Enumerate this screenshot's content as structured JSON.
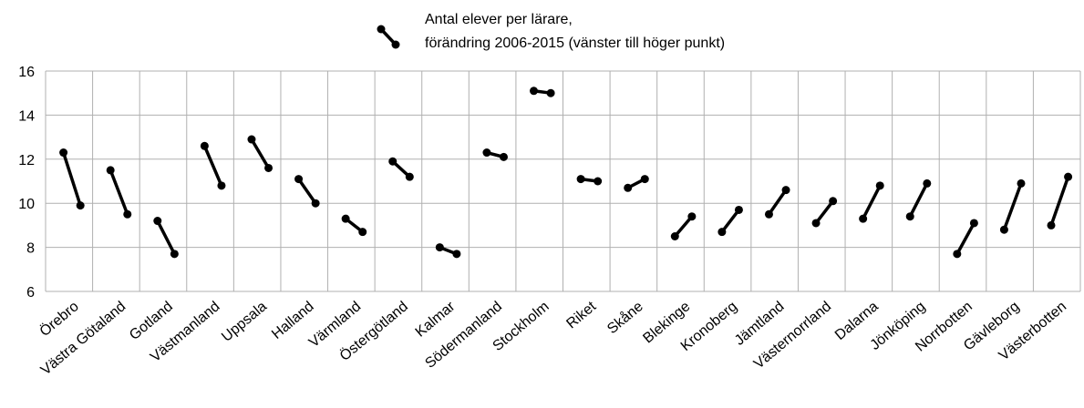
{
  "chart_data": {
    "type": "dumbbell",
    "legend_label": [
      "Antal elever per lärare,",
      "förändring 2006-2015 (vänster till höger punkt)"
    ],
    "categories": [
      "Örebro",
      "Västra Götaland",
      "Gotland",
      "Västmanland",
      "Uppsala",
      "Halland",
      "Värmland",
      "Östergötland",
      "Kalmar",
      "Södermanland",
      "Stockholm",
      "Riket",
      "Skåne",
      "Blekinge",
      "Kronoberg",
      "Jämtland",
      "Västernorrland",
      "Dalarna",
      "Jönköping",
      "Norrbotten",
      "Gävleborg",
      "Västerbotten"
    ],
    "values_start": [
      12.3,
      11.5,
      9.2,
      12.6,
      12.9,
      11.1,
      9.3,
      11.9,
      8.0,
      12.3,
      15.1,
      11.1,
      10.7,
      8.5,
      8.7,
      9.5,
      9.1,
      9.3,
      9.4,
      7.7,
      8.8,
      9.0
    ],
    "values_end": [
      9.9,
      9.5,
      7.7,
      10.8,
      11.6,
      10.0,
      8.7,
      11.2,
      7.7,
      12.1,
      15.0,
      11.0,
      11.1,
      9.4,
      9.7,
      10.6,
      10.1,
      10.8,
      10.9,
      9.1,
      10.9,
      11.2
    ],
    "color": "#000000",
    "ylim": [
      6,
      16
    ],
    "yticks": [
      6,
      8,
      10,
      12,
      14,
      16
    ],
    "grid": true
  }
}
